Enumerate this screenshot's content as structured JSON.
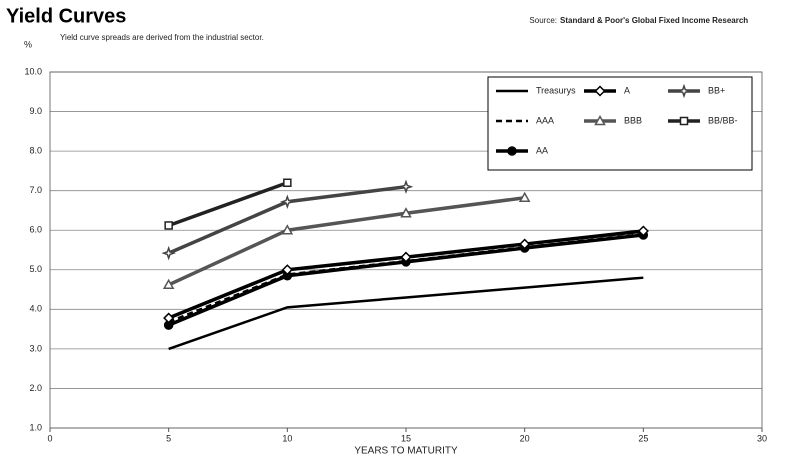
{
  "chart_data": {
    "type": "line",
    "title": "Yield Curves",
    "subtitle": "Yield curve spreads are derived from the industrial sector.",
    "source_label": "Source:",
    "source": "Standard & Poor's Global Fixed Income Research",
    "ylabel": "%",
    "xlabel": "YEARS TO MATURITY",
    "xlim": [
      0,
      30
    ],
    "xticks": [
      0,
      5,
      10,
      15,
      20,
      25,
      30
    ],
    "ylim": [
      1,
      10
    ],
    "yticks": [
      {
        "value": 1,
        "label": "1.0"
      },
      {
        "value": 2,
        "label": "2.0"
      },
      {
        "value": 3,
        "label": "3.0"
      },
      {
        "value": 4,
        "label": "4.0"
      },
      {
        "value": 5,
        "label": "5.0"
      },
      {
        "value": 6,
        "label": "6.0"
      },
      {
        "value": 7,
        "label": "7.0"
      },
      {
        "value": 8,
        "label": "8.0"
      },
      {
        "value": 9,
        "label": "9.0"
      },
      {
        "value": 10,
        "label": "10.0"
      }
    ],
    "grid": true,
    "legend": "upper right",
    "series": [
      {
        "name": "Treasurys",
        "color": "#000000",
        "x": [
          5,
          10,
          15,
          20,
          25
        ],
        "values": [
          3.0,
          4.05,
          4.3,
          4.55,
          4.8
        ]
      },
      {
        "name": "AAA",
        "color": "#000000",
        "line_style": "dashed",
        "x": [
          5,
          10,
          15,
          20,
          25
        ],
        "values": [
          3.68,
          4.88,
          5.22,
          5.57,
          5.9
        ]
      },
      {
        "name": "AA",
        "color": "#000000",
        "marker": "circle",
        "x": [
          5,
          10,
          15,
          20,
          25
        ],
        "values": [
          3.6,
          4.85,
          5.2,
          5.55,
          5.88
        ]
      },
      {
        "name": "A",
        "color": "#000000",
        "marker": "diamond",
        "x": [
          5,
          10,
          15,
          20,
          25
        ],
        "values": [
          3.78,
          5.0,
          5.32,
          5.65,
          5.98
        ]
      },
      {
        "name": "BBB",
        "color": "#555555",
        "marker": "triangle",
        "x": [
          5,
          10,
          15,
          20
        ],
        "values": [
          4.62,
          6.0,
          6.43,
          6.82
        ]
      },
      {
        "name": "BB+",
        "color": "#444444",
        "marker": "star",
        "x": [
          5,
          10,
          15
        ],
        "values": [
          5.42,
          6.72,
          7.1
        ]
      },
      {
        "name": "BB/BB-",
        "color": "#222222",
        "marker": "square",
        "x": [
          5,
          10
        ],
        "values": [
          6.12,
          7.2
        ]
      }
    ]
  }
}
